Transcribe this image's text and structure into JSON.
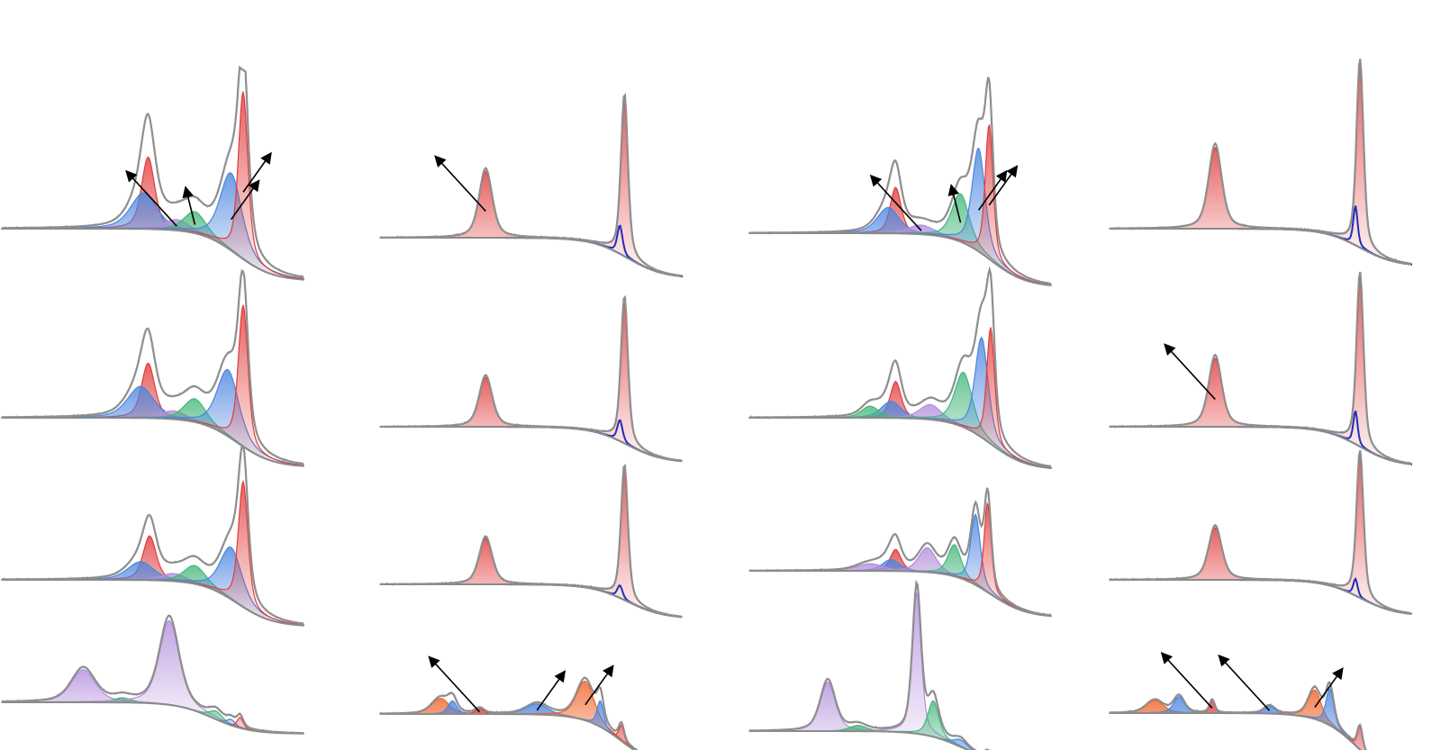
{
  "figure": {
    "description_text": "",
    "colors": {
      "envelope": "#8a8a8a",
      "baseline": "#8a8a8a",
      "data_points": "#9a9a9a",
      "red": "#e23b3b",
      "blue": "#4a86e0",
      "navy": "#1f2fb8",
      "green": "#45b77a",
      "purple": "#b48fdc",
      "orange": "#f0642a",
      "arrow": "#000000"
    },
    "icons": [
      "arrow-icon"
    ]
  },
  "chart_data": [
    {
      "type": "area",
      "panel": "r1c1",
      "peaks": [
        {
          "color": "red",
          "x": 0.485,
          "height": 0.4,
          "width": 0.03
        },
        {
          "color": "blue",
          "x": 0.47,
          "height": 0.2,
          "width": 0.06
        },
        {
          "color": "purple",
          "x": 0.58,
          "height": 0.06,
          "width": 0.06
        },
        {
          "color": "green",
          "x": 0.64,
          "height": 0.12,
          "width": 0.05
        },
        {
          "color": "blue",
          "x": 0.76,
          "height": 0.43,
          "width": 0.05
        },
        {
          "color": "red",
          "x": 0.8,
          "height": 0.93,
          "width": 0.022
        }
      ],
      "arrows": [
        {
          "dir": "up-left"
        },
        {
          "dir": "up"
        },
        {
          "dir": "up-right"
        },
        {
          "dir": "up-right"
        }
      ]
    },
    {
      "type": "area",
      "panel": "r2c1",
      "peaks": [
        {
          "color": "red",
          "x": 0.485,
          "height": 0.33,
          "width": 0.03
        },
        {
          "color": "blue",
          "x": 0.46,
          "height": 0.19,
          "width": 0.06
        },
        {
          "color": "purple",
          "x": 0.57,
          "height": 0.05,
          "width": 0.06
        },
        {
          "color": "green",
          "x": 0.64,
          "height": 0.14,
          "width": 0.05
        },
        {
          "color": "blue",
          "x": 0.75,
          "height": 0.4,
          "width": 0.05
        },
        {
          "color": "red",
          "x": 0.8,
          "height": 0.85,
          "width": 0.022
        }
      ],
      "arrows": []
    },
    {
      "type": "area",
      "panel": "r3c1",
      "peaks": [
        {
          "color": "red",
          "x": 0.49,
          "height": 0.29,
          "width": 0.03
        },
        {
          "color": "blue",
          "x": 0.46,
          "height": 0.12,
          "width": 0.06
        },
        {
          "color": "purple",
          "x": 0.57,
          "height": 0.05,
          "width": 0.06
        },
        {
          "color": "green",
          "x": 0.64,
          "height": 0.12,
          "width": 0.05
        },
        {
          "color": "blue",
          "x": 0.76,
          "height": 0.34,
          "width": 0.05
        },
        {
          "color": "red",
          "x": 0.8,
          "height": 0.82,
          "width": 0.022
        }
      ],
      "arrows": []
    },
    {
      "type": "area",
      "panel": "r4c1",
      "peaks": [
        {
          "color": "purple",
          "x": 0.27,
          "height": 0.28,
          "width": 0.055
        },
        {
          "color": "green",
          "x": 0.4,
          "height": 0.04,
          "width": 0.04
        },
        {
          "color": "purple",
          "x": 0.555,
          "height": 0.72,
          "width": 0.045
        },
        {
          "color": "green",
          "x": 0.71,
          "height": 0.07,
          "width": 0.03
        },
        {
          "color": "blue",
          "x": 0.76,
          "height": 0.05,
          "width": 0.02
        },
        {
          "color": "red",
          "x": 0.79,
          "height": 0.09,
          "width": 0.014
        }
      ],
      "arrows": []
    },
    {
      "type": "area",
      "panel": "r1c2",
      "peaks": [
        {
          "color": "red",
          "x": 0.35,
          "height": 0.35,
          "width": 0.03
        },
        {
          "color": "red",
          "x": 0.81,
          "height": 0.82,
          "width": 0.016
        },
        {
          "color": "navy",
          "x": 0.795,
          "height": 0.15,
          "width": 0.012
        }
      ],
      "arrows": [
        {
          "dir": "up-left"
        }
      ]
    },
    {
      "type": "area",
      "panel": "r2c2",
      "peaks": [
        {
          "color": "red",
          "x": 0.35,
          "height": 0.28,
          "width": 0.03
        },
        {
          "color": "red",
          "x": 0.81,
          "height": 0.8,
          "width": 0.016
        },
        {
          "color": "navy",
          "x": 0.795,
          "height": 0.12,
          "width": 0.012
        }
      ],
      "arrows": []
    },
    {
      "type": "area",
      "panel": "r3c2",
      "peaks": [
        {
          "color": "red",
          "x": 0.35,
          "height": 0.29,
          "width": 0.03
        },
        {
          "color": "red",
          "x": 0.81,
          "height": 0.82,
          "width": 0.016
        },
        {
          "color": "navy",
          "x": 0.795,
          "height": 0.08,
          "width": 0.012
        }
      ],
      "arrows": []
    },
    {
      "type": "area",
      "panel": "r4c2",
      "peaks": [
        {
          "color": "orange",
          "x": 0.2,
          "height": 0.12,
          "width": 0.04
        },
        {
          "color": "blue",
          "x": 0.24,
          "height": 0.1,
          "width": 0.02
        },
        {
          "color": "red",
          "x": 0.33,
          "height": 0.04,
          "width": 0.02
        },
        {
          "color": "blue",
          "x": 0.52,
          "height": 0.08,
          "width": 0.05
        },
        {
          "color": "orange",
          "x": 0.68,
          "height": 0.3,
          "width": 0.04
        },
        {
          "color": "blue",
          "x": 0.73,
          "height": 0.2,
          "width": 0.015
        },
        {
          "color": "red",
          "x": 0.8,
          "height": 0.12,
          "width": 0.012
        }
      ],
      "arrows": [
        {
          "dir": "up-left"
        },
        {
          "dir": "up-right"
        },
        {
          "dir": "up-right"
        }
      ]
    },
    {
      "type": "area",
      "panel": "r1c3",
      "peaks": [
        {
          "color": "red",
          "x": 0.485,
          "height": 0.25,
          "width": 0.025
        },
        {
          "color": "blue",
          "x": 0.46,
          "height": 0.14,
          "width": 0.05
        },
        {
          "color": "purple",
          "x": 0.57,
          "height": 0.05,
          "width": 0.06
        },
        {
          "color": "green",
          "x": 0.7,
          "height": 0.26,
          "width": 0.04
        },
        {
          "color": "blue",
          "x": 0.76,
          "height": 0.56,
          "width": 0.03
        },
        {
          "color": "red",
          "x": 0.795,
          "height": 0.73,
          "width": 0.018
        }
      ],
      "arrows": [
        {
          "dir": "up-left"
        },
        {
          "dir": "up"
        },
        {
          "dir": "up-right"
        },
        {
          "dir": "up-right"
        }
      ]
    },
    {
      "type": "area",
      "panel": "r2c3",
      "peaks": [
        {
          "color": "red",
          "x": 0.485,
          "height": 0.22,
          "width": 0.025
        },
        {
          "color": "blue",
          "x": 0.47,
          "height": 0.1,
          "width": 0.045
        },
        {
          "color": "green",
          "x": 0.4,
          "height": 0.07,
          "width": 0.04
        },
        {
          "color": "purple",
          "x": 0.6,
          "height": 0.09,
          "width": 0.05
        },
        {
          "color": "green",
          "x": 0.71,
          "height": 0.33,
          "width": 0.04
        },
        {
          "color": "blue",
          "x": 0.77,
          "height": 0.6,
          "width": 0.03
        },
        {
          "color": "red",
          "x": 0.8,
          "height": 0.7,
          "width": 0.018
        }
      ],
      "arrows": []
    },
    {
      "type": "area",
      "panel": "r3c3",
      "peaks": [
        {
          "color": "red",
          "x": 0.485,
          "height": 0.15,
          "width": 0.025
        },
        {
          "color": "blue",
          "x": 0.47,
          "height": 0.08,
          "width": 0.04
        },
        {
          "color": "purple",
          "x": 0.4,
          "height": 0.05,
          "width": 0.06
        },
        {
          "color": "purple",
          "x": 0.59,
          "height": 0.17,
          "width": 0.04
        },
        {
          "color": "green",
          "x": 0.68,
          "height": 0.22,
          "width": 0.03
        },
        {
          "color": "blue",
          "x": 0.75,
          "height": 0.49,
          "width": 0.022
        },
        {
          "color": "red",
          "x": 0.79,
          "height": 0.62,
          "width": 0.016
        }
      ],
      "arrows": []
    },
    {
      "type": "area",
      "panel": "r4c3",
      "peaks": [
        {
          "color": "purple",
          "x": 0.26,
          "height": 0.34,
          "width": 0.035
        },
        {
          "color": "green",
          "x": 0.36,
          "height": 0.04,
          "width": 0.04
        },
        {
          "color": "purple",
          "x": 0.555,
          "height": 0.98,
          "width": 0.02
        },
        {
          "color": "green",
          "x": 0.61,
          "height": 0.25,
          "width": 0.025
        },
        {
          "color": "blue",
          "x": 0.7,
          "height": 0.05,
          "width": 0.03
        },
        {
          "color": "red",
          "x": 0.79,
          "height": 0.04,
          "width": 0.015
        }
      ],
      "arrows": []
    },
    {
      "type": "area",
      "panel": "r1c4",
      "peaks": [
        {
          "color": "red",
          "x": 0.35,
          "height": 0.45,
          "width": 0.03
        },
        {
          "color": "red",
          "x": 0.83,
          "height": 1.0,
          "width": 0.016
        },
        {
          "color": "navy",
          "x": 0.815,
          "height": 0.22,
          "width": 0.01
        }
      ],
      "arrows": []
    },
    {
      "type": "area",
      "panel": "r2c4",
      "peaks": [
        {
          "color": "red",
          "x": 0.35,
          "height": 0.39,
          "width": 0.03
        },
        {
          "color": "red",
          "x": 0.83,
          "height": 0.95,
          "width": 0.016
        },
        {
          "color": "navy",
          "x": 0.815,
          "height": 0.19,
          "width": 0.01
        }
      ],
      "arrows": [
        {
          "dir": "up-left"
        }
      ]
    },
    {
      "type": "area",
      "panel": "r3c4",
      "peaks": [
        {
          "color": "red",
          "x": 0.35,
          "height": 0.34,
          "width": 0.03
        },
        {
          "color": "red",
          "x": 0.83,
          "height": 0.92,
          "width": 0.016
        },
        {
          "color": "navy",
          "x": 0.815,
          "height": 0.11,
          "width": 0.01
        }
      ],
      "arrows": []
    },
    {
      "type": "area",
      "panel": "r4c4",
      "peaks": [
        {
          "color": "orange",
          "x": 0.15,
          "height": 0.1,
          "width": 0.04
        },
        {
          "color": "blue",
          "x": 0.23,
          "height": 0.13,
          "width": 0.025
        },
        {
          "color": "red",
          "x": 0.34,
          "height": 0.1,
          "width": 0.012
        },
        {
          "color": "blue",
          "x": 0.53,
          "height": 0.06,
          "width": 0.025
        },
        {
          "color": "orange",
          "x": 0.68,
          "height": 0.23,
          "width": 0.03
        },
        {
          "color": "blue",
          "x": 0.73,
          "height": 0.29,
          "width": 0.018
        },
        {
          "color": "red",
          "x": 0.83,
          "height": 0.18,
          "width": 0.012
        }
      ],
      "arrows": [
        {
          "dir": "up-left"
        },
        {
          "dir": "up-left"
        },
        {
          "dir": "up-right"
        }
      ]
    }
  ]
}
